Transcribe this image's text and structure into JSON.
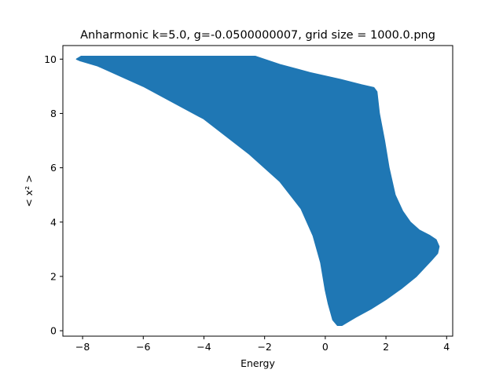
{
  "chart_data": {
    "type": "area",
    "title": "Anharmonic  k=5.0, g=-0.0500000007, grid size = 1000.0.png",
    "xlabel": "Energy",
    "ylabel": "< x² >",
    "xlim": [
      -8.65,
      4.2
    ],
    "ylim": [
      -0.2,
      10.5
    ],
    "xticks": [
      -8,
      -6,
      -4,
      -2,
      0,
      2,
      4
    ],
    "yticks": [
      0,
      2,
      4,
      6,
      8,
      10
    ],
    "grid": false,
    "legend": "none",
    "color": "#1f77b4",
    "series": [
      {
        "boundary": [
          [
            -8.2,
            10.0
          ],
          [
            -8.05,
            10.1
          ],
          [
            -7.0,
            10.1
          ],
          [
            -5.0,
            10.1
          ],
          [
            -3.0,
            10.1
          ],
          [
            -2.3,
            10.1
          ],
          [
            -1.5,
            9.8
          ],
          [
            -0.5,
            9.5
          ],
          [
            0.5,
            9.25
          ],
          [
            1.2,
            9.05
          ],
          [
            1.6,
            8.95
          ],
          [
            1.7,
            8.8
          ],
          [
            1.78,
            8.0
          ],
          [
            1.95,
            7.0
          ],
          [
            2.1,
            6.0
          ],
          [
            2.3,
            5.0
          ],
          [
            2.55,
            4.4
          ],
          [
            2.8,
            4.0
          ],
          [
            3.1,
            3.7
          ],
          [
            3.45,
            3.5
          ],
          [
            3.65,
            3.35
          ],
          [
            3.75,
            3.1
          ],
          [
            3.7,
            2.85
          ],
          [
            3.5,
            2.6
          ],
          [
            3.0,
            2.0
          ],
          [
            2.5,
            1.55
          ],
          [
            2.0,
            1.15
          ],
          [
            1.5,
            0.8
          ],
          [
            1.0,
            0.5
          ],
          [
            0.7,
            0.3
          ],
          [
            0.55,
            0.2
          ],
          [
            0.4,
            0.2
          ],
          [
            0.25,
            0.4
          ],
          [
            0.1,
            1.0
          ],
          [
            0.0,
            1.5
          ],
          [
            -0.15,
            2.5
          ],
          [
            -0.4,
            3.5
          ],
          [
            -0.8,
            4.5
          ],
          [
            -1.5,
            5.5
          ],
          [
            -2.5,
            6.5
          ],
          [
            -4.0,
            7.8
          ],
          [
            -6.0,
            9.0
          ],
          [
            -7.5,
            9.75
          ],
          [
            -8.1,
            9.95
          ]
        ]
      }
    ]
  }
}
